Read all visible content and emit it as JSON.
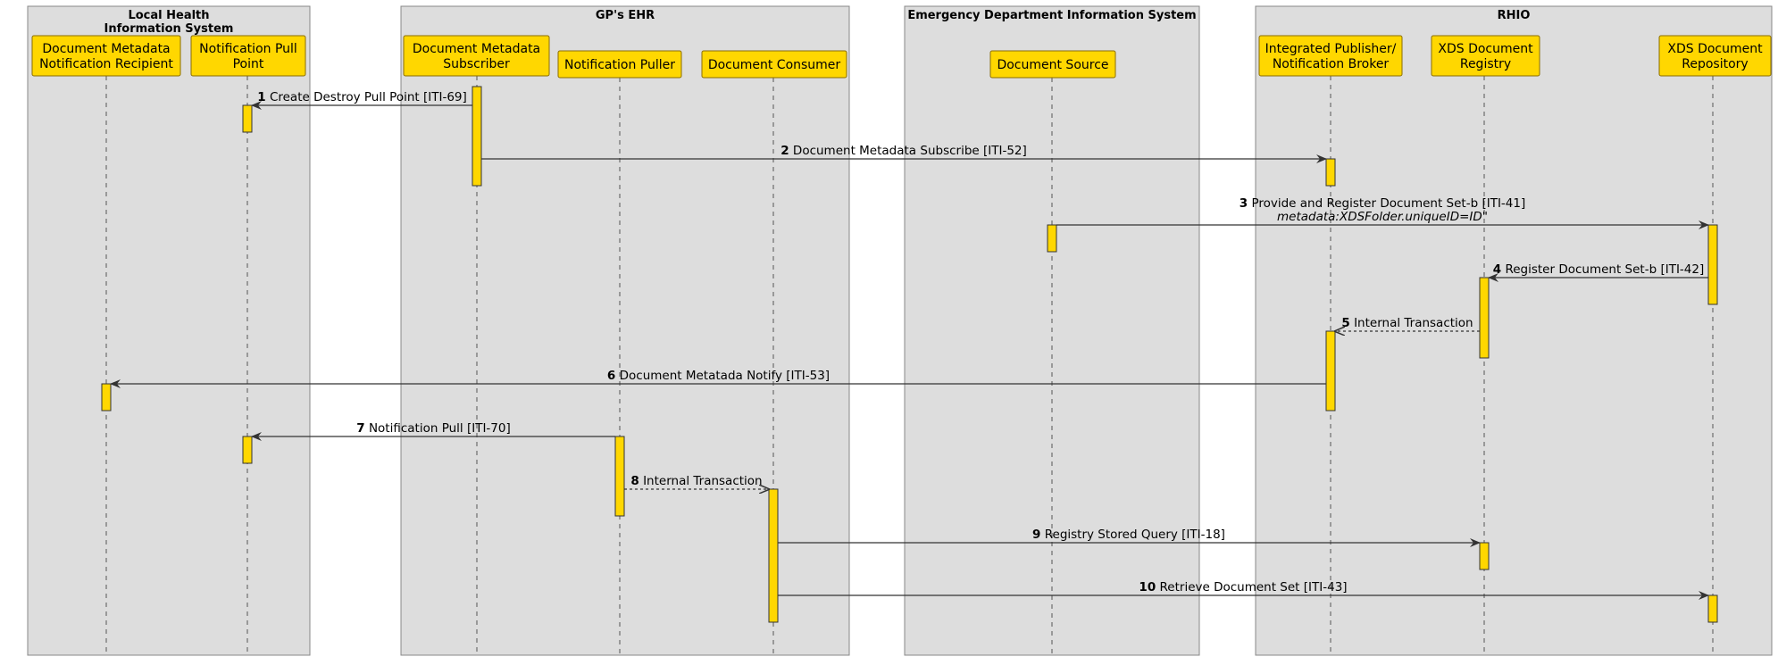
{
  "colors": {
    "box_fill": "#dddddd",
    "box_stroke": "#888888",
    "participant_fill": "#ffd700",
    "participant_stroke": "#8a6d00",
    "activation_fill": "#ffd700",
    "line": "#333333"
  },
  "boxes": [
    {
      "id": "lhis",
      "title_lines": [
        "Local Health",
        "Information System"
      ]
    },
    {
      "id": "gp",
      "title_lines": [
        "GP's EHR"
      ]
    },
    {
      "id": "ed",
      "title_lines": [
        "Emergency Department Information System"
      ]
    },
    {
      "id": "rhio",
      "title_lines": [
        "RHIO"
      ]
    }
  ],
  "participants": [
    {
      "id": "dmnr",
      "lines": [
        "Document Metadata",
        "Notification Recipient"
      ]
    },
    {
      "id": "npp",
      "lines": [
        "Notification Pull",
        "Point"
      ]
    },
    {
      "id": "dms",
      "lines": [
        "Document Metadata",
        "Subscriber"
      ]
    },
    {
      "id": "np",
      "lines": [
        "Notification Puller"
      ]
    },
    {
      "id": "dc",
      "lines": [
        "Document Consumer"
      ]
    },
    {
      "id": "ds",
      "lines": [
        "Document Source"
      ]
    },
    {
      "id": "ipnb",
      "lines": [
        "Integrated Publisher/",
        "Notification Broker"
      ]
    },
    {
      "id": "xdsreg",
      "lines": [
        "XDS Document",
        "Registry"
      ]
    },
    {
      "id": "xdsrep",
      "lines": [
        "XDS Document",
        "Repository"
      ]
    }
  ],
  "messages": [
    {
      "num": "1",
      "text": "Create Destroy Pull Point [ITI-69]",
      "from": "dms",
      "to": "npp",
      "style": "solid"
    },
    {
      "num": "2",
      "text": "Document Metadata Subscribe [ITI-52]",
      "from": "dms",
      "to": "ipnb",
      "style": "solid"
    },
    {
      "num": "3",
      "text": "Provide and Register Document Set-b [ITI-41]",
      "note": "metadata:XDSFolder.uniqueID=ID\"",
      "from": "ds",
      "to": "xdsrep",
      "style": "solid"
    },
    {
      "num": "4",
      "text": "Register Document Set-b [ITI-42]",
      "from": "xdsrep",
      "to": "xdsreg",
      "style": "solid"
    },
    {
      "num": "5",
      "text": "Internal Transaction",
      "from": "xdsreg",
      "to": "ipnb",
      "style": "dashed"
    },
    {
      "num": "6",
      "text": "Document Metatada Notify [ITI-53]",
      "from": "ipnb",
      "to": "dmnr",
      "style": "solid"
    },
    {
      "num": "7",
      "text": "Notification Pull [ITI-70]",
      "from": "np",
      "to": "npp",
      "style": "solid"
    },
    {
      "num": "8",
      "text": "Internal Transaction",
      "from": "np",
      "to": "dc",
      "style": "dashed"
    },
    {
      "num": "9",
      "text": "Registry Stored Query [ITI-18]",
      "from": "dc",
      "to": "xdsreg",
      "style": "solid"
    },
    {
      "num": "10",
      "text": "Retrieve Document Set [ITI-43]",
      "from": "dc",
      "to": "xdsrep",
      "style": "solid"
    }
  ]
}
